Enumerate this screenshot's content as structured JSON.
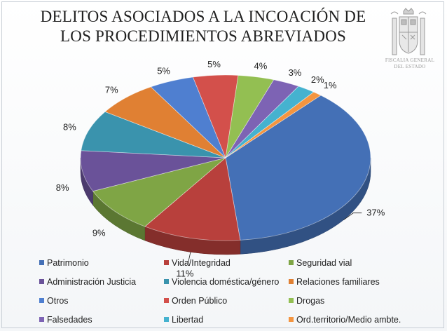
{
  "chart_data": {
    "type": "pie",
    "title": "DELITOS ASOCIADOS A LA INCOACIÓN DE LOS PROCEDIMIENTOS ABREVIADOS",
    "title_lines": [
      "DELITOS ASOCIADOS A LA INCOACIÓN DE",
      "LOS PROCEDIMIENTOS ABREVIADOS"
    ],
    "legend_position": "bottom",
    "slices": [
      {
        "label": "Patrimonio",
        "value": 37,
        "display": "37%",
        "color": "#4470b6"
      },
      {
        "label": "Vida/Integridad",
        "value": 11,
        "display": "11%",
        "color": "#b8403c"
      },
      {
        "label": "Seguridad vial",
        "value": 9,
        "display": "9%",
        "color": "#7fa545"
      },
      {
        "label": "Administración Justicia",
        "value": 8,
        "display": "8%",
        "color": "#6a5299"
      },
      {
        "label": "Violencia doméstica/género",
        "value": 8,
        "display": "8%",
        "color": "#3a93ad"
      },
      {
        "label": "Relaciones familiares",
        "value": 7,
        "display": "7%",
        "color": "#e08033"
      },
      {
        "label": "Otros",
        "value": 5,
        "display": "5%",
        "color": "#4f7fd0"
      },
      {
        "label": "Orden Público",
        "value": 5,
        "display": "5%",
        "color": "#d3504b"
      },
      {
        "label": "Drogas",
        "value": 4,
        "display": "4%",
        "color": "#93bf52"
      },
      {
        "label": "Falsedades",
        "value": 3,
        "display": "3%",
        "color": "#7d63b4"
      },
      {
        "label": "Libertad",
        "value": 2,
        "display": "2%",
        "color": "#45b2cf"
      },
      {
        "label": "Ord.territorio/Medio ambte.",
        "value": 1,
        "display": "1%",
        "color": "#f49540"
      }
    ]
  },
  "emblem": {
    "caption_lines": [
      "FISCALIA GENERAL",
      "DEL ESTADO"
    ],
    "icon": "coat-of-arms-icon"
  }
}
